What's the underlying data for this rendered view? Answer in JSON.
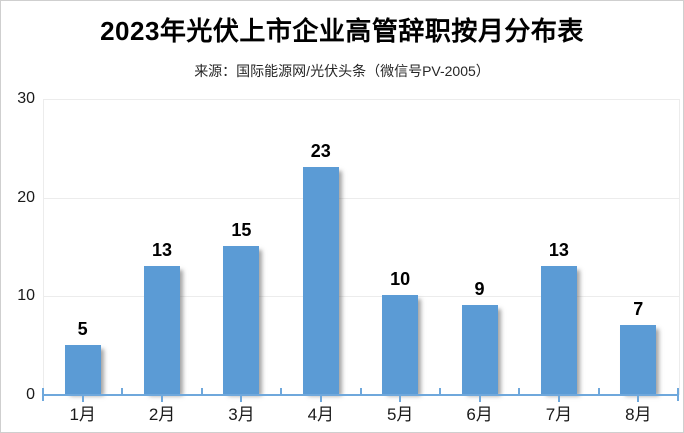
{
  "page": {
    "title": "2023年光伏上市企业高管辞职按月分布表",
    "subtitle": "来源：国际能源网/光伏头条（微信号PV-2005）"
  },
  "chart_data": {
    "type": "bar",
    "title": "2023年光伏上市企业高管辞职按月分布表",
    "subtitle": "来源：国际能源网/光伏头条（微信号PV-2005）",
    "categories": [
      "1月",
      "2月",
      "3月",
      "4月",
      "5月",
      "6月",
      "7月",
      "8月"
    ],
    "values": [
      5,
      13,
      15,
      23,
      10,
      9,
      13,
      7
    ],
    "xlabel": "",
    "ylabel": "",
    "ylim": [
      0,
      30
    ],
    "yticks": [
      0,
      10,
      20,
      30
    ],
    "grid": true,
    "legend": false,
    "data_labels": true,
    "colors": {
      "bar": "#5b9bd5",
      "axis_line": "#6fa8dc",
      "gridline": "#ececec",
      "text": "#1a1a1a"
    }
  }
}
